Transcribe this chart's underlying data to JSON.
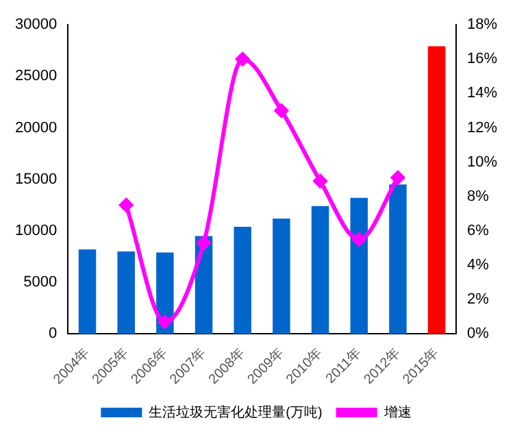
{
  "chart_data": {
    "type": "bar",
    "categories": [
      "2004年",
      "2005年",
      "2006年",
      "2007年",
      "2008年",
      "2009年",
      "2010年",
      "2011年",
      "2012年",
      "2015年"
    ],
    "series": [
      {
        "name": "生活垃圾无害化处理量(万吨)",
        "color": "#0066cc",
        "colors": [
          "#0066cc",
          "#0066cc",
          "#0066cc",
          "#0066cc",
          "#0066cc",
          "#0066cc",
          "#0066cc",
          "#0066cc",
          "#0066cc",
          "#ff0000"
        ],
        "values": [
          8200,
          8000,
          7900,
          9500,
          10400,
          11200,
          12400,
          13200,
          14500,
          27900
        ]
      },
      {
        "name": "增速",
        "type": "line",
        "axis": "y2",
        "color": "#ff00ff",
        "marker": "diamond",
        "values": [
          null,
          7.5,
          0.7,
          5.3,
          16.0,
          13.0,
          8.9,
          5.5,
          9.1,
          null
        ]
      }
    ],
    "ylim": [
      0,
      30000
    ],
    "yticks": [
      0,
      5000,
      10000,
      15000,
      20000,
      25000,
      30000
    ],
    "y2lim": [
      0,
      18
    ],
    "y2ticks": [
      {
        "value": 0,
        "label": "0%"
      },
      {
        "value": 2,
        "label": "2%"
      },
      {
        "value": 4,
        "label": "4%"
      },
      {
        "value": 6,
        "label": "6%"
      },
      {
        "value": 8,
        "label": "8%"
      },
      {
        "value": 10,
        "label": "10%"
      },
      {
        "value": 12,
        "label": "12%"
      },
      {
        "value": 14,
        "label": "14%"
      },
      {
        "value": 16,
        "label": "16%"
      },
      {
        "value": 18,
        "label": "18%"
      }
    ],
    "grid": false,
    "legend": "bottom"
  }
}
